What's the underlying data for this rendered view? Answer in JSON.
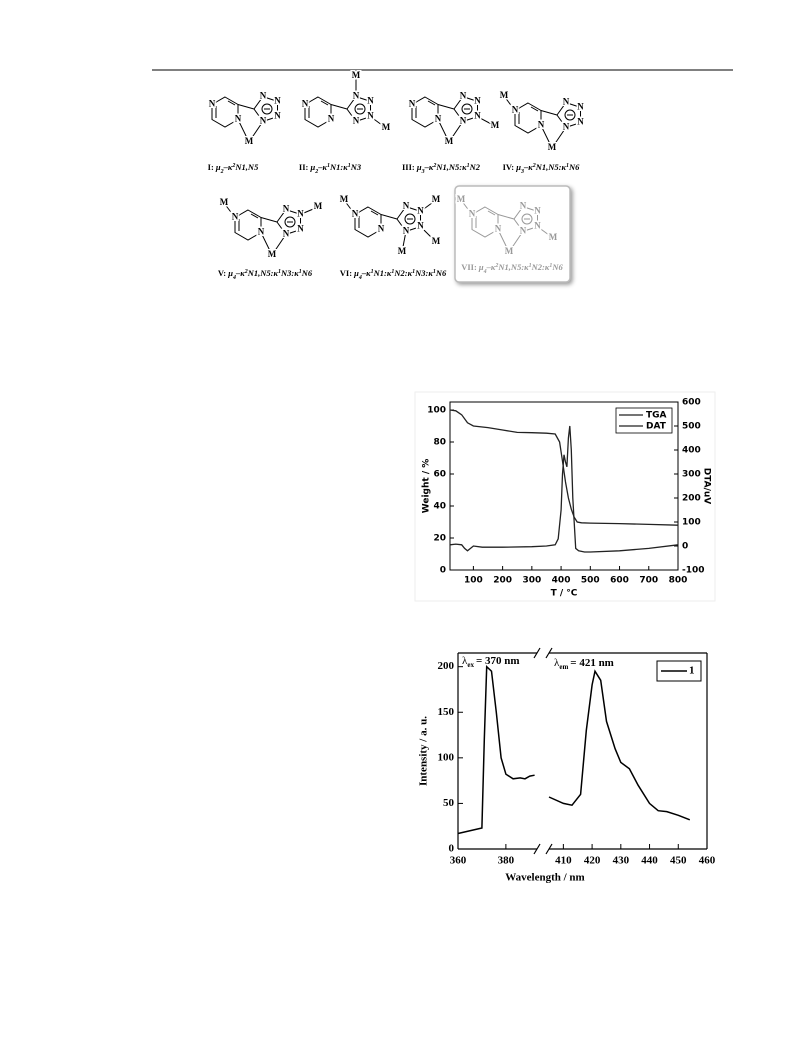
{
  "figure": {
    "structures": [
      {
        "atoms": [
          "N",
          "N",
          "N",
          "N",
          "N",
          "N",
          "M"
        ],
        "caption": [
          {
            "text": "I: "
          },
          {
            "text": "μ"
          },
          {
            "text": "2",
            "style": "sub"
          },
          {
            "text": "–κ"
          },
          {
            "text": "2",
            "style": "sup"
          },
          {
            "text": "N1,N5"
          }
        ]
      },
      {
        "atoms": [
          "N",
          "N",
          "N",
          "N",
          "N",
          "N",
          "M",
          "M"
        ],
        "caption": [
          {
            "text": "II: "
          },
          {
            "text": "μ"
          },
          {
            "text": "2",
            "style": "sub"
          },
          {
            "text": "–κ"
          },
          {
            "text": "1",
            "style": "sup"
          },
          {
            "text": "N1:κ"
          },
          {
            "text": "1",
            "style": "sup"
          },
          {
            "text": "N3"
          }
        ]
      },
      {
        "atoms": [
          "N",
          "N",
          "N",
          "N",
          "N",
          "N",
          "M",
          "M"
        ],
        "caption": [
          {
            "text": "III: "
          },
          {
            "text": "μ"
          },
          {
            "text": "3",
            "style": "sub"
          },
          {
            "text": "–κ"
          },
          {
            "text": "2",
            "style": "sup"
          },
          {
            "text": "N1,N5:κ"
          },
          {
            "text": "1",
            "style": "sup"
          },
          {
            "text": "N2"
          }
        ]
      },
      {
        "atoms": [
          "N",
          "N",
          "N",
          "N",
          "N",
          "N",
          "M",
          "M"
        ],
        "caption": [
          {
            "text": "IV: "
          },
          {
            "text": "μ"
          },
          {
            "text": "3",
            "style": "sub"
          },
          {
            "text": "–κ"
          },
          {
            "text": "2",
            "style": "sup"
          },
          {
            "text": "N1,N5:κ"
          },
          {
            "text": "1",
            "style": "sup"
          },
          {
            "text": "N6"
          }
        ]
      },
      {
        "atoms": [
          "N",
          "N",
          "N",
          "N",
          "N",
          "N",
          "M",
          "M",
          "M"
        ],
        "caption": [
          {
            "text": "V: "
          },
          {
            "text": "μ"
          },
          {
            "text": "4",
            "style": "sub"
          },
          {
            "text": "–κ"
          },
          {
            "text": "2",
            "style": "sup"
          },
          {
            "text": "N1,N5:κ"
          },
          {
            "text": "1",
            "style": "sup"
          },
          {
            "text": "N3:κ"
          },
          {
            "text": "1",
            "style": "sup"
          },
          {
            "text": "N6"
          }
        ]
      },
      {
        "atoms": [
          "N",
          "N",
          "N",
          "N",
          "N",
          "N",
          "M",
          "M",
          "M",
          "M"
        ],
        "caption": [
          {
            "text": "VI: "
          },
          {
            "text": "μ"
          },
          {
            "text": "4",
            "style": "sub"
          },
          {
            "text": "–κ"
          },
          {
            "text": "1",
            "style": "sup"
          },
          {
            "text": "N1:κ"
          },
          {
            "text": "1",
            "style": "sup"
          },
          {
            "text": "N2:κ"
          },
          {
            "text": "1",
            "style": "sup"
          },
          {
            "text": "N3:κ"
          },
          {
            "text": "1",
            "style": "sup"
          },
          {
            "text": "N6"
          }
        ]
      },
      {
        "atoms": [
          "N",
          "N",
          "N",
          "N",
          "N",
          "N",
          "M",
          "M",
          "M"
        ],
        "caption": [
          {
            "text": "VII: "
          },
          {
            "text": "μ"
          },
          {
            "text": "4",
            "style": "sub"
          },
          {
            "text": "–κ"
          },
          {
            "text": "2",
            "style": "sup"
          },
          {
            "text": "N1,N5:κ"
          },
          {
            "text": "1",
            "style": "sup"
          },
          {
            "text": "N2:κ"
          },
          {
            "text": "1",
            "style": "sup"
          },
          {
            "text": "N6"
          }
        ]
      }
    ]
  },
  "chart_data": [
    {
      "type": "line",
      "x_label": "T / °C",
      "y_label": "Weight / %",
      "y2_label": "DTA/uV",
      "xlim": [
        20,
        800
      ],
      "xticks": [
        100,
        200,
        300,
        400,
        500,
        600,
        700,
        800
      ],
      "ylim": [
        0,
        105
      ],
      "yticks": [
        0,
        20,
        40,
        60,
        80,
        100
      ],
      "y2lim": [
        -100,
        600
      ],
      "y2ticks": [
        -100,
        0,
        100,
        200,
        300,
        400,
        500,
        600
      ],
      "legend": "upper-right",
      "series": [
        {
          "name": "TGA",
          "color": "#222222",
          "x": [
            20,
            40,
            60,
            80,
            100,
            150,
            200,
            250,
            300,
            350,
            380,
            395,
            405,
            415,
            425,
            435,
            445,
            455,
            470,
            500,
            600,
            700,
            800
          ],
          "values": [
            100,
            99.5,
            97,
            92,
            90,
            89,
            87.5,
            86,
            85.8,
            85.5,
            85,
            80,
            68,
            55,
            45,
            38,
            33,
            30,
            29.5,
            29.3,
            29,
            28.5,
            28
          ]
        },
        {
          "name": "DAT",
          "color": "#222222",
          "axis": "y2",
          "x": [
            20,
            40,
            60,
            70,
            80,
            90,
            100,
            130,
            200,
            300,
            350,
            380,
            390,
            400,
            405,
            410,
            415,
            420,
            425,
            430,
            435,
            440,
            450,
            460,
            480,
            500,
            600,
            700,
            800
          ],
          "values": [
            5,
            8,
            5,
            -10,
            -20,
            -10,
            0,
            -5,
            -5,
            -3,
            0,
            5,
            30,
            150,
            300,
            380,
            350,
            330,
            450,
            500,
            400,
            200,
            -10,
            -20,
            -25,
            -25,
            -20,
            -10,
            5
          ]
        }
      ]
    },
    {
      "type": "line",
      "x_label": "Wavelength / nm",
      "y_label": "Intensity / a. u.",
      "x_segments": [
        {
          "xlim": [
            360,
            393
          ],
          "xticks": [
            360,
            380
          ]
        },
        {
          "xlim": [
            405,
            460
          ],
          "xticks": [
            410,
            420,
            430,
            440,
            450,
            460
          ]
        }
      ],
      "ylim": [
        0,
        215
      ],
      "yticks": [
        0,
        50,
        100,
        150,
        200
      ],
      "legend": "upper-right",
      "annotations": [
        {
          "symbol": "λ",
          "subscript": "ex",
          "text": "= 370 nm"
        },
        {
          "symbol": "λ",
          "subscript": "em",
          "text": "= 421 nm"
        }
      ],
      "series": [
        {
          "name": "1",
          "color": "#000000",
          "x": [
            360,
            370,
            371,
            372,
            374,
            376,
            378,
            380,
            383,
            386,
            388,
            390,
            392,
            400,
            405,
            410,
            413,
            416,
            418,
            420,
            421,
            423,
            425,
            428,
            430,
            433,
            436,
            440,
            443,
            446,
            450,
            454
          ],
          "values": [
            17,
            23,
            120,
            200,
            195,
            150,
            100,
            82,
            77,
            78,
            77,
            80,
            81,
            null,
            57,
            50,
            48,
            60,
            130,
            180,
            195,
            185,
            140,
            110,
            95,
            88,
            70,
            50,
            42,
            41,
            37,
            32
          ]
        }
      ]
    }
  ]
}
